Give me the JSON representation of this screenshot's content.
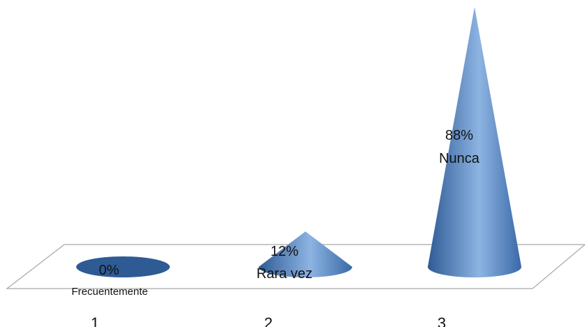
{
  "chart_data": {
    "type": "bar",
    "style": "3d-cone",
    "categories": [
      "1",
      "2",
      "3"
    ],
    "values": [
      0,
      12,
      88
    ],
    "value_unit": "%",
    "point_labels": [
      {
        "pct": "0%",
        "name": "Frecuentemente"
      },
      {
        "pct": "12%",
        "name": "Rara vez"
      },
      {
        "pct": "88%",
        "name": "Nunca"
      }
    ],
    "ylim": [
      0,
      88
    ],
    "grid": false,
    "legend": "none",
    "colors": {
      "cone_dark": "#2f5b95",
      "cone_mid": "#4f81bd",
      "cone_light": "#8db4e2",
      "floor_line": "#a6a6a6"
    }
  }
}
